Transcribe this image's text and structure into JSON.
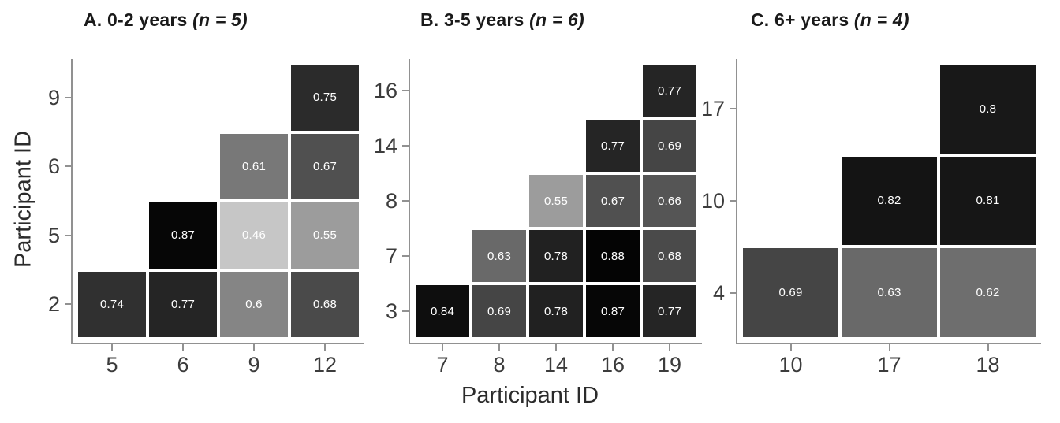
{
  "figure": {
    "x_axis_title": "Participant ID",
    "y_axis_title": "Participant ID",
    "background_color": "#ffffff",
    "axis_color": "#919191",
    "tick_label_color": "#3c3c3c",
    "panel_title_color": "#1a1a1a",
    "cell_text_color": "#ffffff"
  },
  "chart_data": [
    {
      "type": "heatmap",
      "panel": "A",
      "title": "A. 0-2 years",
      "n_label": "(n = 5)",
      "xlabel": "Participant ID",
      "ylabel": "Participant ID",
      "x": [
        "5",
        "6",
        "9",
        "12"
      ],
      "y_top_to_bottom": [
        "9",
        "6",
        "5",
        "2"
      ],
      "cells": [
        {
          "x": "12",
          "y": "9",
          "value": 0.75,
          "label": "0.75",
          "color": "#2b2b2b"
        },
        {
          "x": "9",
          "y": "6",
          "value": 0.61,
          "label": "0.61",
          "color": "#787878"
        },
        {
          "x": "12",
          "y": "6",
          "value": 0.67,
          "label": "0.67",
          "color": "#505050"
        },
        {
          "x": "6",
          "y": "5",
          "value": 0.87,
          "label": "0.87",
          "color": "#060606"
        },
        {
          "x": "9",
          "y": "5",
          "value": 0.46,
          "label": "0.46",
          "color": "#c6c6c6"
        },
        {
          "x": "12",
          "y": "5",
          "value": 0.55,
          "label": "0.55",
          "color": "#9c9c9c"
        },
        {
          "x": "5",
          "y": "2",
          "value": 0.74,
          "label": "0.74",
          "color": "#303030"
        },
        {
          "x": "6",
          "y": "2",
          "value": 0.77,
          "label": "0.77",
          "color": "#252525"
        },
        {
          "x": "9",
          "y": "2",
          "value": 0.6,
          "label": "0.6",
          "color": "#858585"
        },
        {
          "x": "12",
          "y": "2",
          "value": 0.68,
          "label": "0.68",
          "color": "#4a4a4a"
        }
      ]
    },
    {
      "type": "heatmap",
      "panel": "B",
      "title": "B. 3-5 years",
      "n_label": "(n = 6)",
      "xlabel": "Participant ID",
      "ylabel": "Participant ID",
      "x": [
        "7",
        "8",
        "14",
        "16",
        "19"
      ],
      "y_top_to_bottom": [
        "16",
        "14",
        "8",
        "7",
        "3"
      ],
      "cells": [
        {
          "x": "19",
          "y": "16",
          "value": 0.77,
          "label": "0.77",
          "color": "#252525"
        },
        {
          "x": "16",
          "y": "14",
          "value": 0.77,
          "label": "0.77",
          "color": "#252525"
        },
        {
          "x": "19",
          "y": "14",
          "value": 0.69,
          "label": "0.69",
          "color": "#454545"
        },
        {
          "x": "14",
          "y": "8",
          "value": 0.55,
          "label": "0.55",
          "color": "#9c9c9c"
        },
        {
          "x": "16",
          "y": "8",
          "value": 0.67,
          "label": "0.67",
          "color": "#505050"
        },
        {
          "x": "19",
          "y": "8",
          "value": 0.66,
          "label": "0.66",
          "color": "#555555"
        },
        {
          "x": "8",
          "y": "7",
          "value": 0.63,
          "label": "0.63",
          "color": "#696969"
        },
        {
          "x": "14",
          "y": "7",
          "value": 0.78,
          "label": "0.78",
          "color": "#212121"
        },
        {
          "x": "16",
          "y": "7",
          "value": 0.88,
          "label": "0.88",
          "color": "#040404"
        },
        {
          "x": "19",
          "y": "7",
          "value": 0.68,
          "label": "0.68",
          "color": "#4a4a4a"
        },
        {
          "x": "7",
          "y": "3",
          "value": 0.84,
          "label": "0.84",
          "color": "#0e0e0e"
        },
        {
          "x": "8",
          "y": "3",
          "value": 0.69,
          "label": "0.69",
          "color": "#454545"
        },
        {
          "x": "14",
          "y": "3",
          "value": 0.78,
          "label": "0.78",
          "color": "#212121"
        },
        {
          "x": "16",
          "y": "3",
          "value": 0.87,
          "label": "0.87",
          "color": "#060606"
        },
        {
          "x": "19",
          "y": "3",
          "value": 0.77,
          "label": "0.77",
          "color": "#252525"
        }
      ]
    },
    {
      "type": "heatmap",
      "panel": "C",
      "title": "C. 6+ years",
      "n_label": "(n = 4)",
      "xlabel": "Participant ID",
      "ylabel": "Participant ID",
      "x": [
        "10",
        "17",
        "18"
      ],
      "y_top_to_bottom": [
        "17",
        "10",
        "4"
      ],
      "cells": [
        {
          "x": "18",
          "y": "17",
          "value": 0.8,
          "label": "0.8",
          "color": "#181818"
        },
        {
          "x": "17",
          "y": "10",
          "value": 0.82,
          "label": "0.82",
          "color": "#141414"
        },
        {
          "x": "18",
          "y": "10",
          "value": 0.81,
          "label": "0.81",
          "color": "#161616"
        },
        {
          "x": "10",
          "y": "4",
          "value": 0.69,
          "label": "0.69",
          "color": "#454545"
        },
        {
          "x": "17",
          "y": "4",
          "value": 0.63,
          "label": "0.63",
          "color": "#696969"
        },
        {
          "x": "18",
          "y": "4",
          "value": 0.62,
          "label": "0.62",
          "color": "#6e6e6e"
        }
      ]
    }
  ]
}
